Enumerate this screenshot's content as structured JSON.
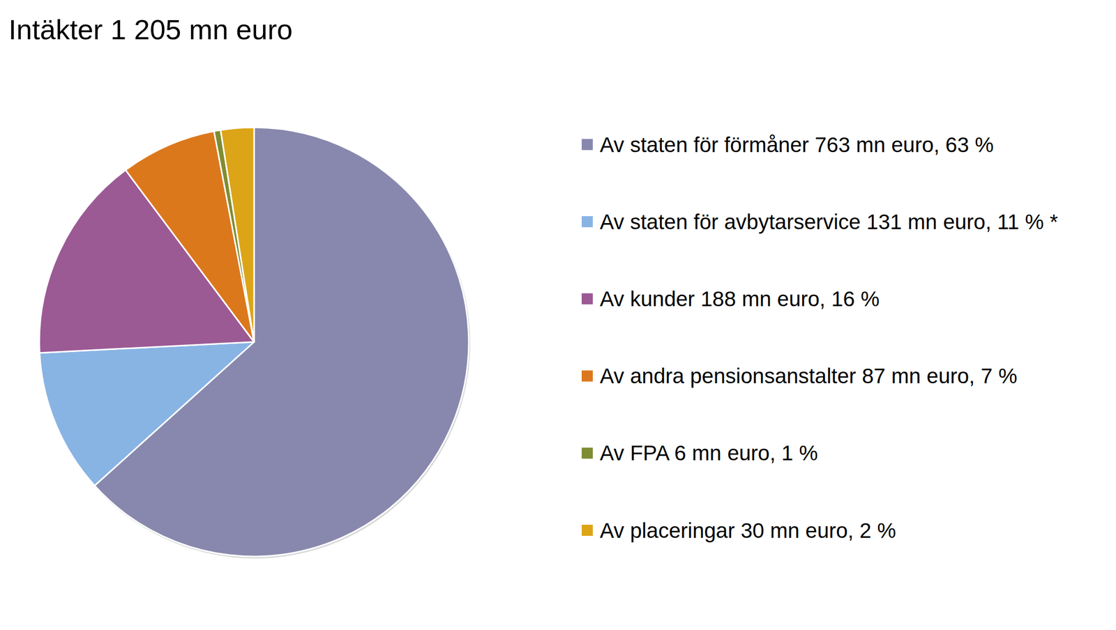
{
  "chart_data": {
    "type": "pie",
    "title": "Intäkter 1 205 mn euro",
    "categories": [
      "Av staten för förmåner 763 mn euro, 63 %",
      "Av staten för avbytarservice 131 mn euro, 11 % *",
      "Av kunder 188 mn euro, 16 %",
      "Av andra pensionsanstalter 87 mn euro, 7 %",
      "Av FPA 6 mn euro, 1 %",
      "Av placeringar 30 mn euro, 2 %"
    ],
    "values": [
      763,
      131,
      188,
      87,
      6,
      30
    ],
    "colors": [
      "#8888ae",
      "#88b4e4",
      "#9b5a94",
      "#dc781c",
      "#7f8d32",
      "#dca517"
    ],
    "legend": "right"
  }
}
